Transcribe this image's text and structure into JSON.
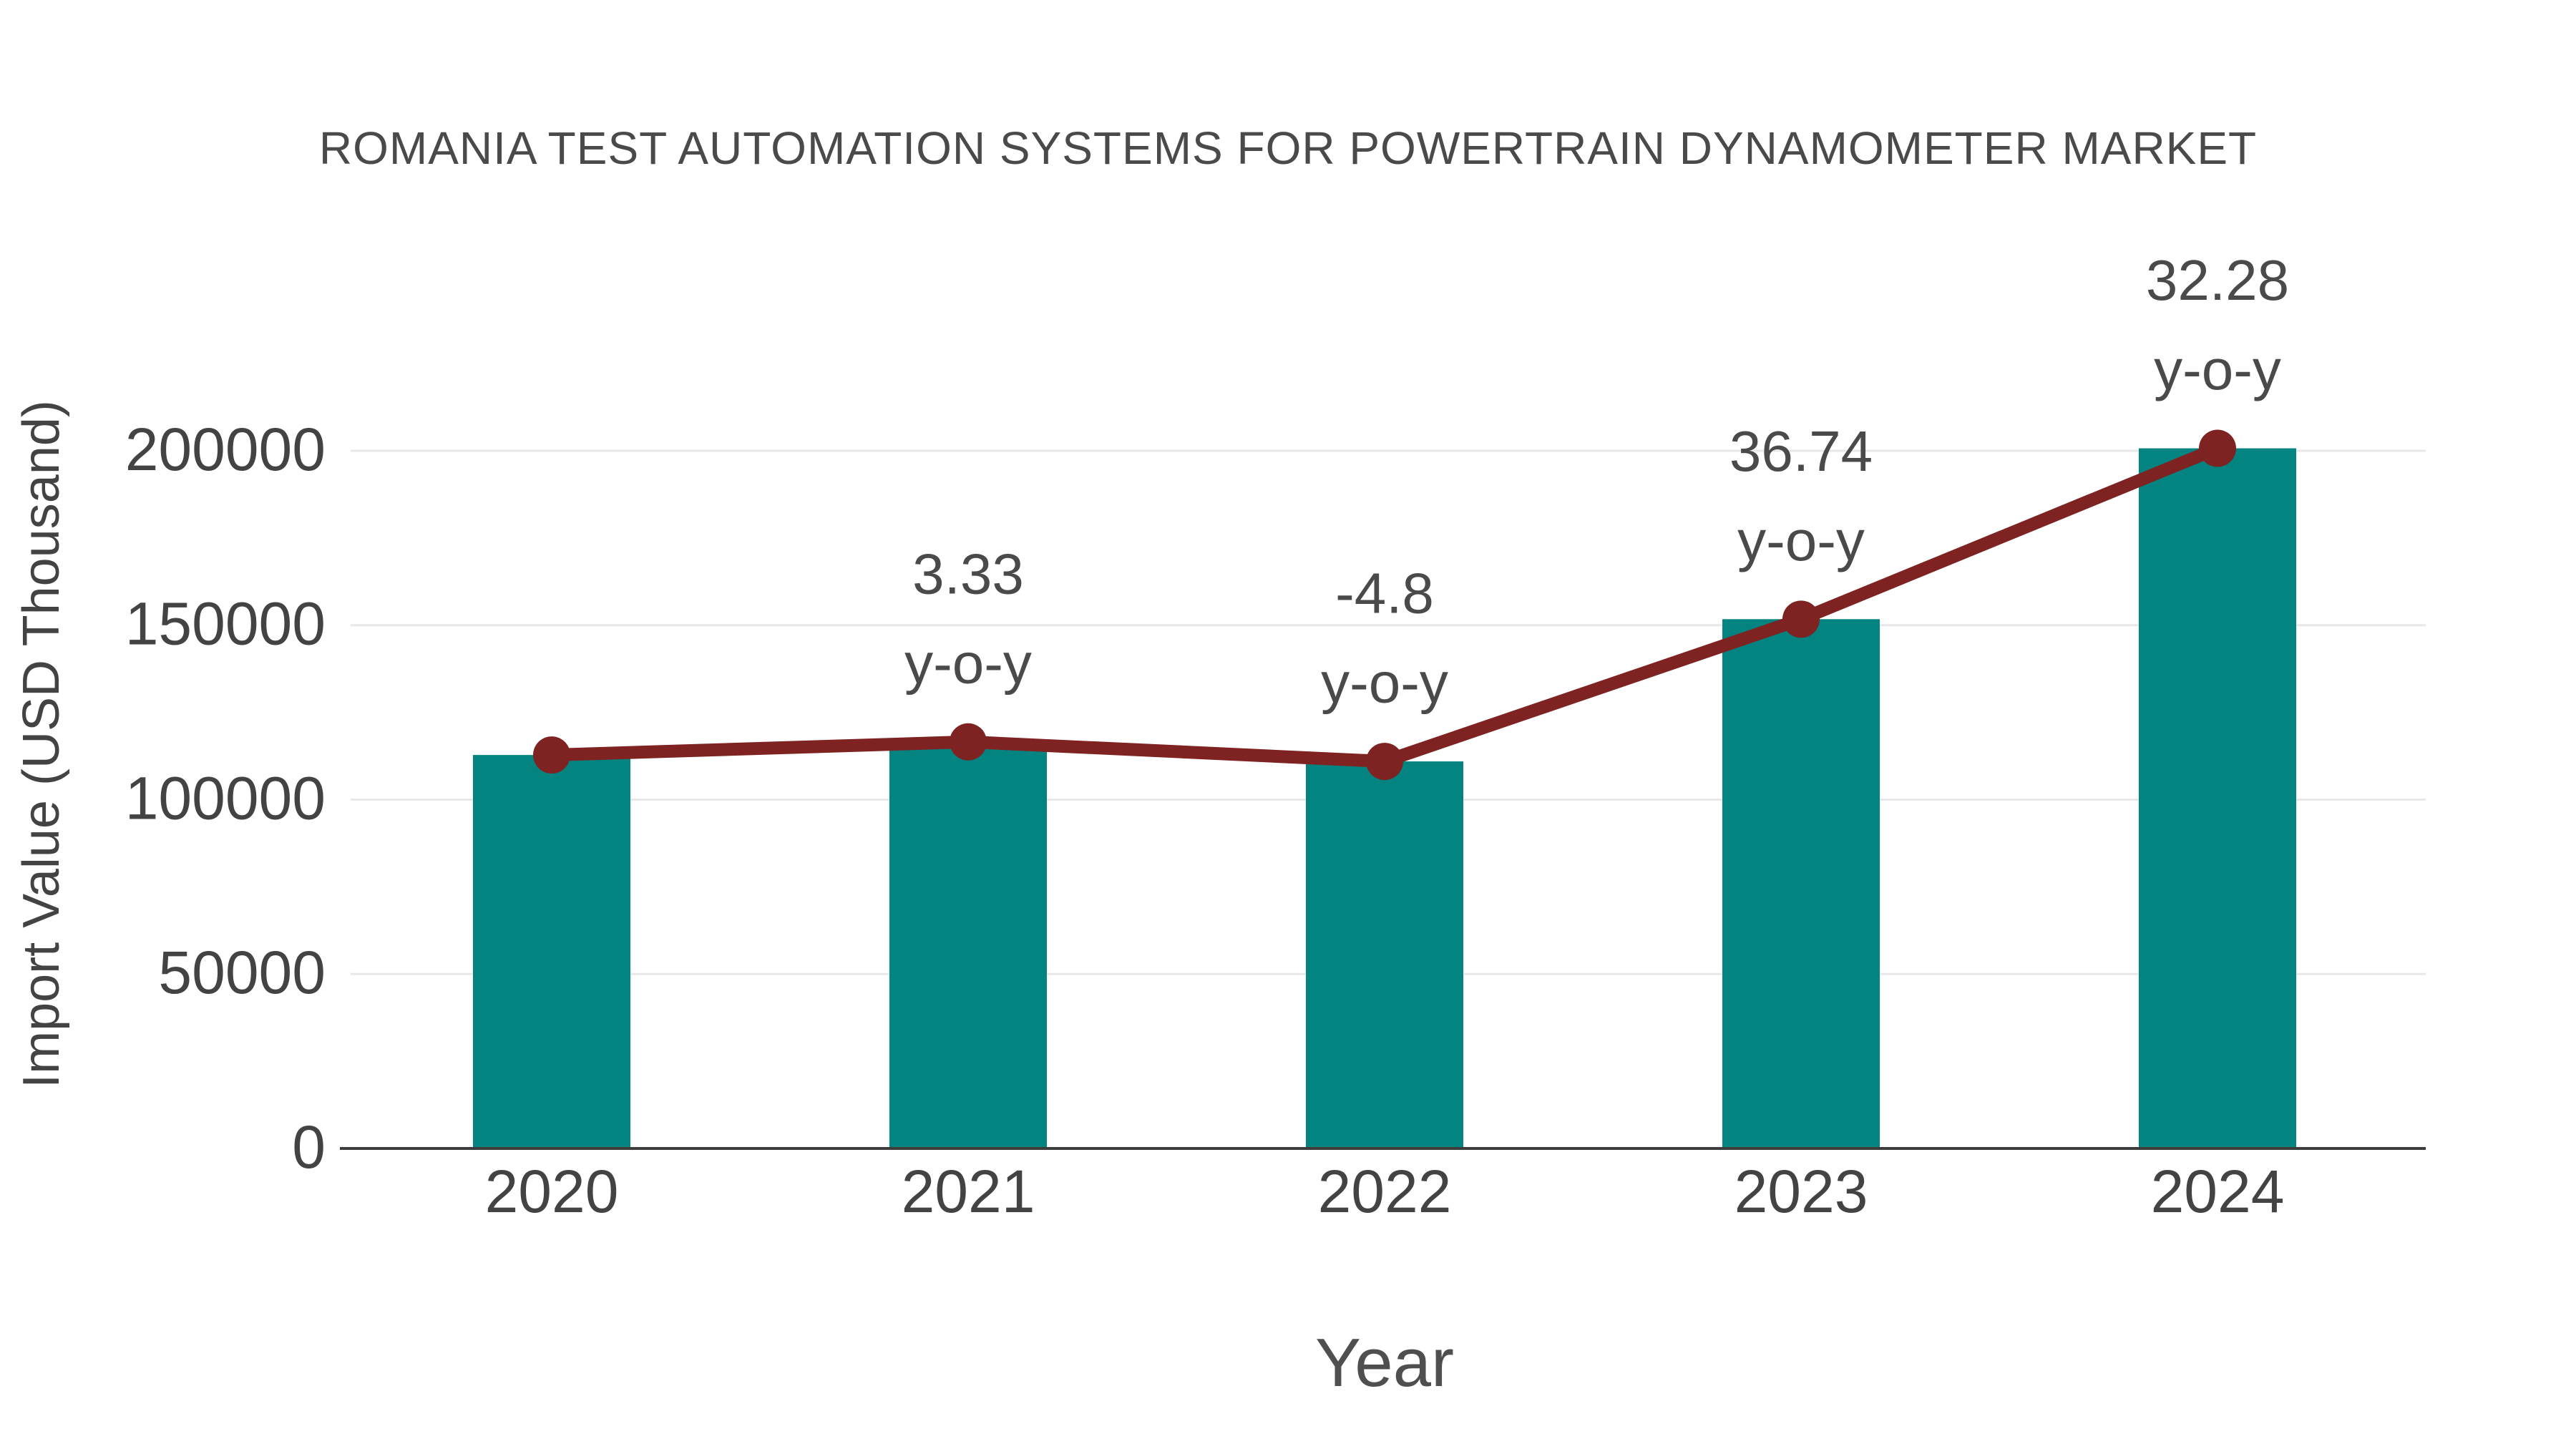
{
  "chart_data": {
    "type": "bar",
    "title": "ROMANIA TEST AUTOMATION SYSTEMS FOR POWERTRAIN DYNAMOMETER MARKET",
    "xlabel": "Year",
    "ylabel": "Import Value (USD Thousand)",
    "categories": [
      "2020",
      "2021",
      "2022",
      "2023",
      "2024"
    ],
    "series": [
      {
        "name": "Import Value bars",
        "type": "bar",
        "color": "#038480",
        "values": [
          112800,
          116560,
          110960,
          151730,
          200710
        ]
      },
      {
        "name": "Import Value trend line",
        "type": "line",
        "color": "#7E2222",
        "values": [
          112800,
          116560,
          110960,
          151730,
          200710
        ]
      }
    ],
    "annotations": [
      {
        "category": "2021",
        "line1": "3.33",
        "line2": "y-o-y"
      },
      {
        "category": "2022",
        "line1": "-4.8",
        "line2": "y-o-y"
      },
      {
        "category": "2023",
        "line1": "36.74",
        "line2": "y-o-y"
      },
      {
        "category": "2024",
        "line1": "32.28",
        "line2": "y-o-y"
      }
    ],
    "yticks": [
      0,
      50000,
      100000,
      150000,
      200000
    ],
    "ylim": [
      0,
      200000
    ],
    "grid": true,
    "legend": "none",
    "grid_color": "#e8e8e8",
    "axis_color": "#3d3d3d",
    "text_color": "#434343",
    "title_color": "#4a4a4a"
  }
}
